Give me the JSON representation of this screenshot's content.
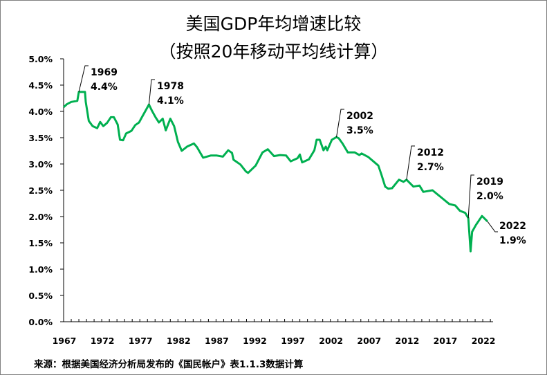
{
  "chart_data": {
    "type": "line",
    "title": "美国GDP年均增速比较",
    "subtitle": "（按照20年移动平均线计算）",
    "source": "来源：根据美国经济分析局发布的《国民帐户》表1.1.3数据计算",
    "xlabel": "",
    "ylabel": "",
    "xlim": [
      1967,
      2023.3
    ],
    "ylim": [
      0,
      5.0
    ],
    "x_ticks": [
      "1967",
      "1972",
      "1977",
      "1982",
      "1987",
      "1992",
      "1997",
      "2002",
      "2007",
      "2012",
      "2017",
      "2022"
    ],
    "y_ticks": [
      "0.0%",
      "0.5%",
      "1.0%",
      "1.5%",
      "2.0%",
      "2.5%",
      "3.0%",
      "3.5%",
      "4.0%",
      "4.5%",
      "5.0%"
    ],
    "grid": false,
    "legend": "none",
    "line_color": "#00b050",
    "series": [
      {
        "x": [
          1967.0,
          1967.45,
          1968.0,
          1968.8,
          1969.0,
          1969.8,
          1969.9,
          1970.3,
          1970.8,
          1971.4,
          1971.8,
          1972.2,
          1972.7,
          1973.2,
          1973.6,
          1974.1,
          1974.4,
          1974.8,
          1975.2,
          1975.9,
          1976.4,
          1976.9,
          1977.2,
          1978.2,
          1978.6,
          1979.1,
          1979.5,
          1980.0,
          1980.4,
          1981.0,
          1981.5,
          1982.0,
          1982.5,
          1983.2,
          1984.1,
          1984.5,
          1985.3,
          1986.3,
          1987.1,
          1987.9,
          1988.6,
          1989.1,
          1989.3,
          1990.2,
          1990.9,
          1991.2,
          1992.2,
          1993.1,
          1993.8,
          1994.6,
          1995.4,
          1996.2,
          1996.8,
          1997.7,
          1998.0,
          1998.3,
          1999.2,
          1999.9,
          2000.2,
          2000.6,
          2001.1,
          2001.4,
          2001.6,
          2002.2,
          2002.8,
          2003.1,
          2003.6,
          2004.3,
          2005.2,
          2005.8,
          2006.1,
          2007.0,
          2008.3,
          2008.7,
          2009.2,
          2009.6,
          2010.1,
          2011.0,
          2011.6,
          2012.0,
          2012.9,
          2013.7,
          2014.2,
          2015.4,
          2016.5,
          2017.6,
          2018.4,
          2019.0,
          2019.7,
          2020.1,
          2020.4,
          2020.6,
          2021.1,
          2021.9,
          2022.6
        ],
        "y": [
          4.08,
          4.14,
          4.18,
          4.2,
          4.37,
          4.37,
          4.18,
          3.82,
          3.72,
          3.68,
          3.8,
          3.72,
          3.78,
          3.89,
          3.89,
          3.75,
          3.46,
          3.45,
          3.58,
          3.63,
          3.74,
          3.79,
          3.87,
          4.13,
          4.01,
          3.88,
          3.79,
          3.86,
          3.64,
          3.86,
          3.72,
          3.42,
          3.25,
          3.33,
          3.39,
          3.32,
          3.12,
          3.16,
          3.16,
          3.14,
          3.26,
          3.21,
          3.08,
          2.99,
          2.86,
          2.83,
          2.97,
          3.22,
          3.28,
          3.15,
          3.17,
          3.16,
          3.05,
          3.11,
          3.18,
          3.03,
          3.09,
          3.26,
          3.46,
          3.46,
          3.26,
          3.33,
          3.26,
          3.46,
          3.51,
          3.49,
          3.39,
          3.22,
          3.22,
          3.17,
          3.2,
          3.13,
          2.97,
          2.8,
          2.57,
          2.53,
          2.54,
          2.7,
          2.66,
          2.7,
          2.57,
          2.59,
          2.47,
          2.5,
          2.37,
          2.24,
          2.21,
          2.11,
          2.07,
          1.97,
          1.34,
          1.71,
          1.84,
          2.01,
          1.91
        ]
      }
    ],
    "annotations": [
      {
        "year": "1969",
        "value": "4.4%",
        "x": 1969.0,
        "y": 4.37
      },
      {
        "year": "1978",
        "value": "4.1%",
        "x": 1978.2,
        "y": 4.13
      },
      {
        "year": "2002",
        "value": "3.5%",
        "x": 2002.8,
        "y": 3.51
      },
      {
        "year": "2012",
        "value": "2.7%",
        "x": 2012.0,
        "y": 2.7
      },
      {
        "year": "2019",
        "value": "2.0%",
        "x": 2020.1,
        "y": 1.97
      },
      {
        "year": "2022",
        "value": "1.9%",
        "x": 2022.6,
        "y": 1.91
      }
    ]
  }
}
